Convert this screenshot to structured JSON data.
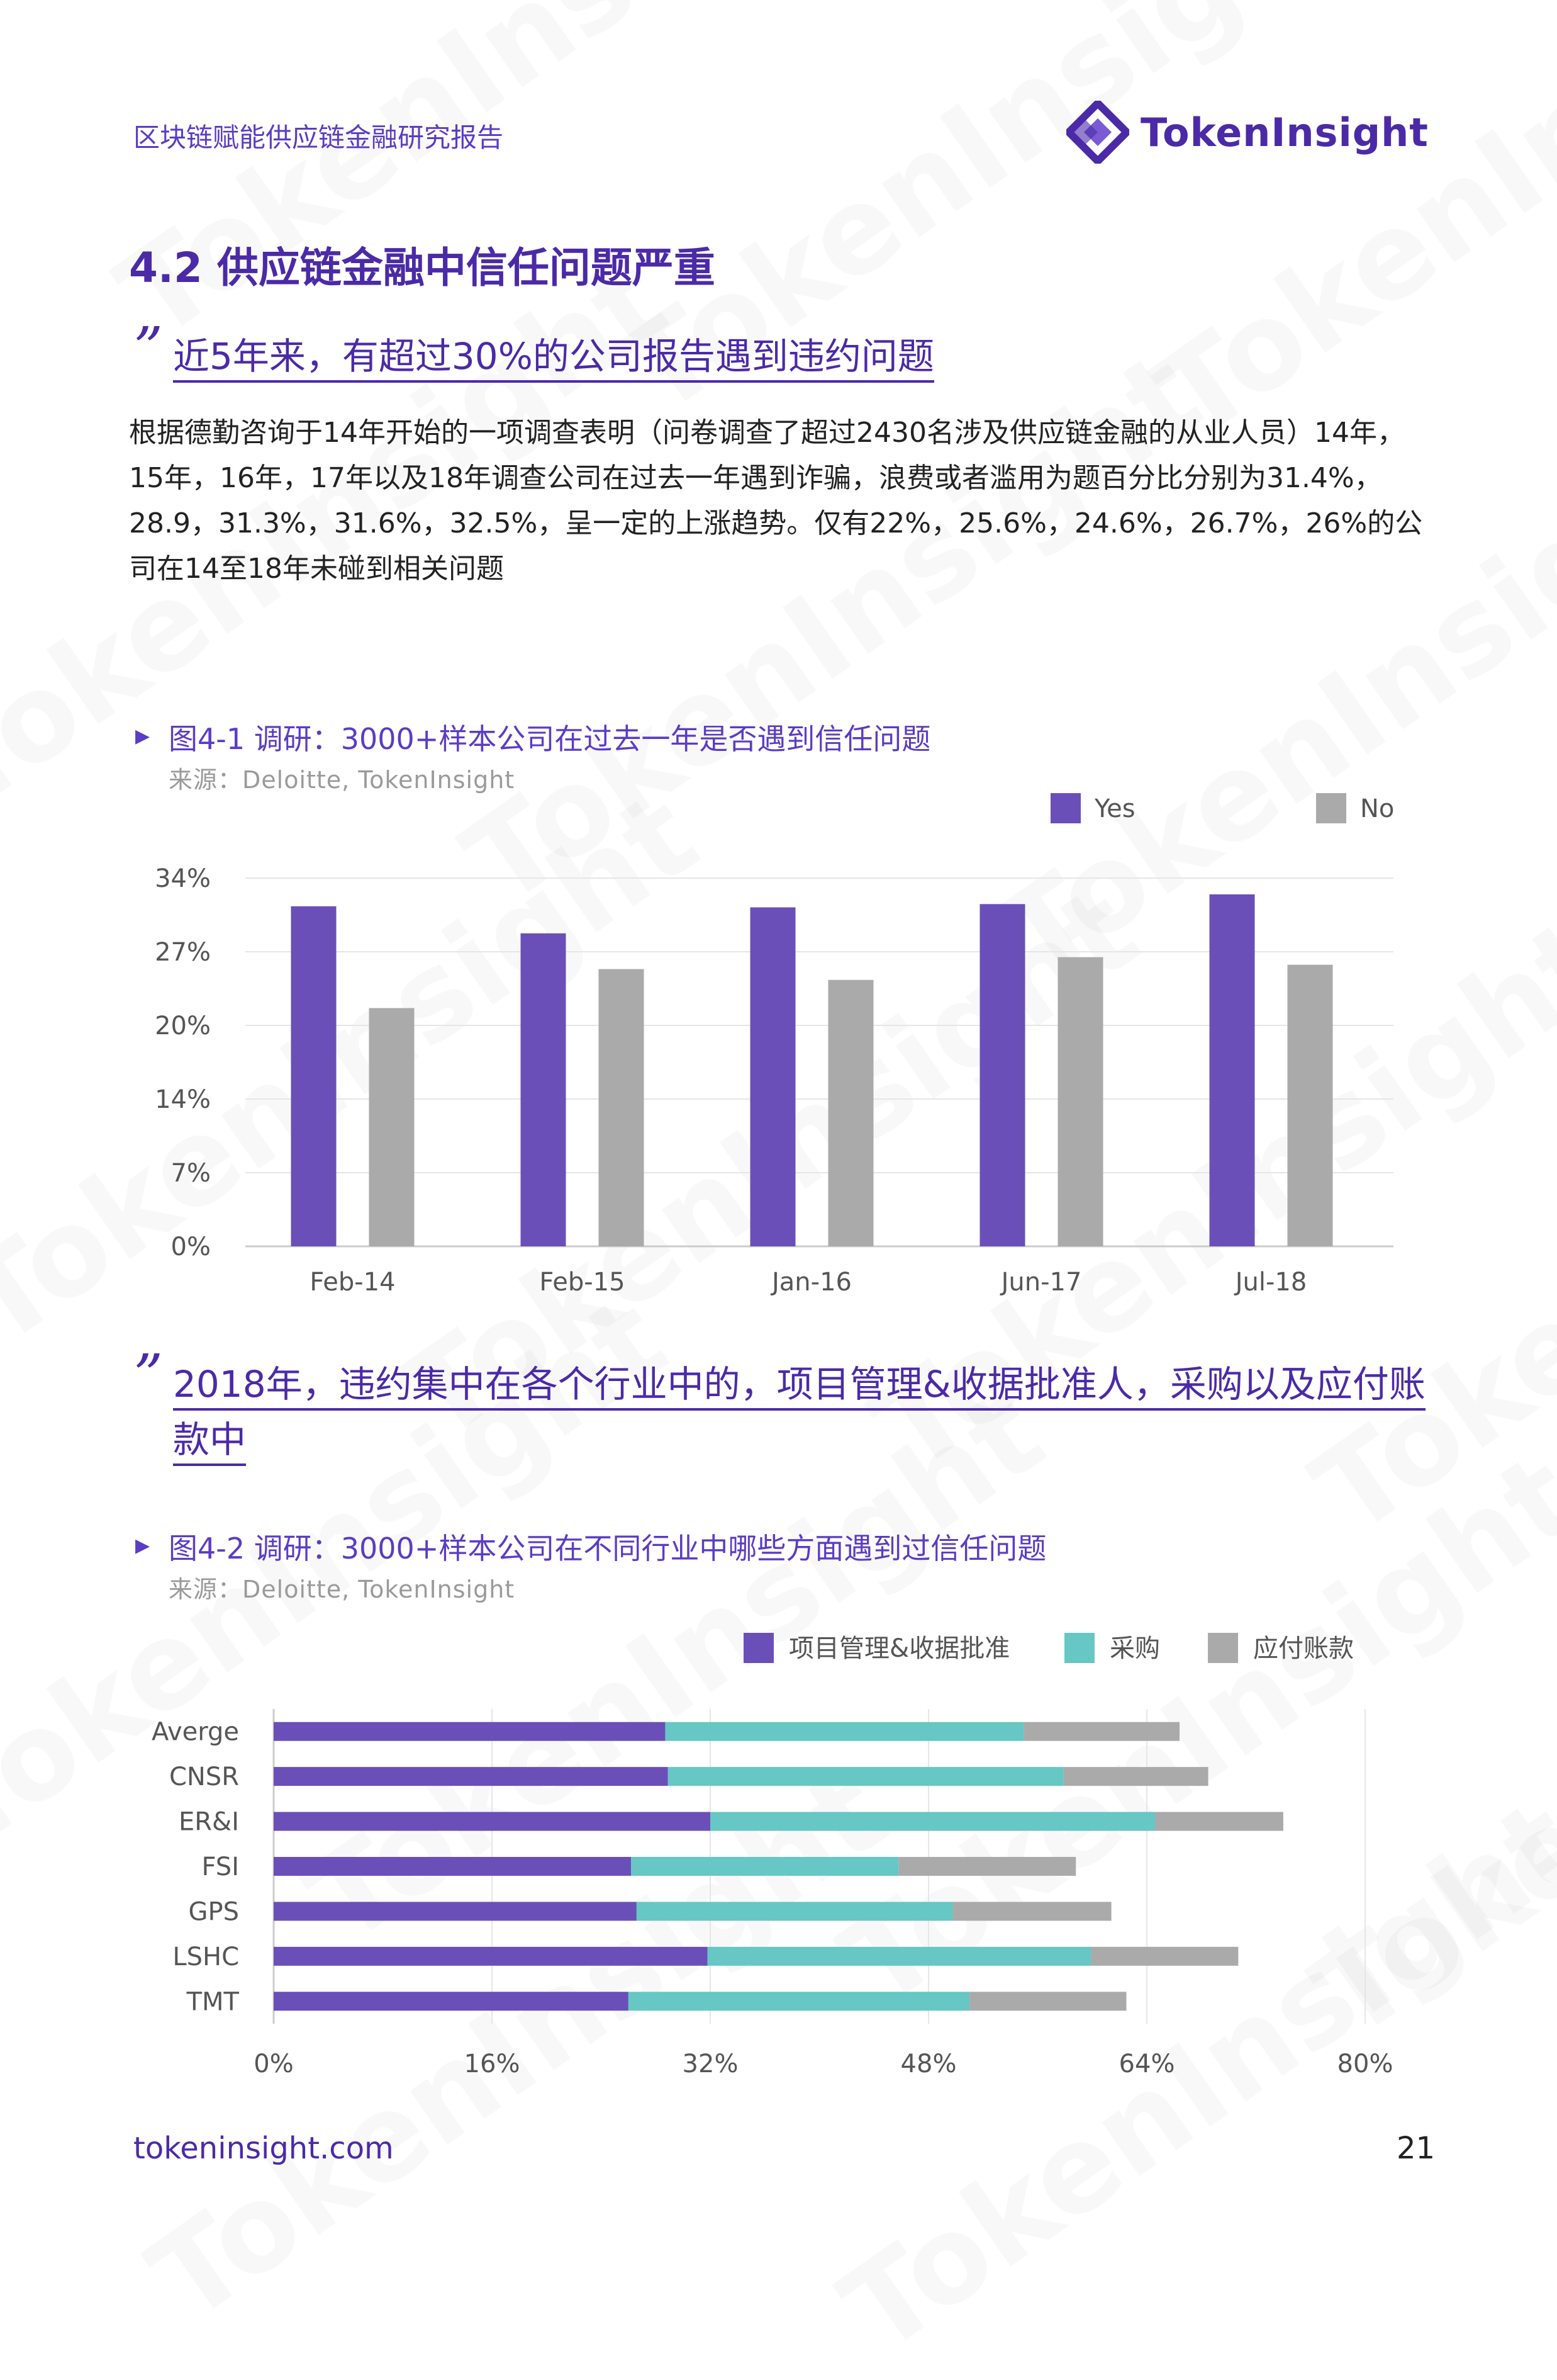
{
  "header": {
    "report_title": "区块链赋能供应链金融研究报告",
    "logo_text": "TokenInsight"
  },
  "watermark_text": "TokenInsight",
  "section": {
    "title": "4.2 供应链金融中信任问题严重"
  },
  "quote1": {
    "mark": "”",
    "text": "近5年来，有超过30%的公司报告遇到违约问题"
  },
  "paragraph": "根据德勤咨询于14年开始的一项调查表明（问卷调查了超过2430名涉及供应链金融的从业人员）14年，15年，16年，17年以及18年调查公司在过去一年遇到诈骗，浪费或者滥用为题百分比分别为31.4%，28.9，31.3%，31.6%，32.5%，呈一定的上涨趋势。仅有22%，25.6%，24.6%，26.7%，26%的公司在14至18年未碰到相关问题",
  "figure1": {
    "marker": "▶",
    "title": "图4-1 调研：3000+样本公司在过去一年是否遇到信任问题",
    "source": "来源：Deloitte, TokenInsight"
  },
  "quote2": {
    "mark": "”",
    "line1": "2018年，违约集中在各个行业中的，项目管理&收据批准人，采购以及应付账",
    "line2": "款中"
  },
  "figure2": {
    "marker": "▶",
    "title": "图4-2 调研：3000+样本公司在不同行业中哪些方面遇到过信任问题",
    "source": "来源：Deloitte, TokenInsight"
  },
  "chart_data": [
    {
      "type": "bar",
      "categories": [
        "Feb-14",
        "Feb-15",
        "Jan-16",
        "Jun-17",
        "Jul-18"
      ],
      "series": [
        {
          "name": "Yes",
          "values": [
            31.4,
            28.9,
            31.3,
            31.6,
            32.5
          ],
          "color": "#6a4fb8"
        },
        {
          "name": "No",
          "values": [
            22.0,
            25.6,
            24.6,
            26.7,
            26.0
          ],
          "color": "#aaaaaa"
        }
      ],
      "yticks": [
        "0%",
        "7%",
        "14%",
        "20%",
        "27%",
        "34%"
      ],
      "ylim": [
        0,
        34
      ],
      "legend_position": "top-right",
      "grid": true
    },
    {
      "type": "bar",
      "orientation": "horizontal",
      "stacked": true,
      "categories": [
        "Averge",
        "CNSR",
        "ER&I",
        "FSI",
        "GPS",
        "LSHC",
        "TMT"
      ],
      "series": [
        {
          "name": "项目管理&收据批准",
          "values": [
            28.7,
            28.9,
            32.0,
            26.2,
            26.6,
            31.8,
            26.0
          ],
          "color": "#6a4fb8"
        },
        {
          "name": "采购",
          "values": [
            26.3,
            29.0,
            32.6,
            19.6,
            23.2,
            28.1,
            25.0
          ],
          "color": "#66c7c4"
        },
        {
          "name": "应付账款",
          "values": [
            11.4,
            10.6,
            9.4,
            13.0,
            11.6,
            10.8,
            11.5
          ],
          "color": "#aaaaaa"
        }
      ],
      "xticks": [
        "0%",
        "16%",
        "32%",
        "48%",
        "64%",
        "80%"
      ],
      "xlim": [
        0,
        80
      ],
      "legend_position": "top-right",
      "grid": true
    }
  ],
  "footer": {
    "url": "tokeninsight.com",
    "page_number": "21"
  }
}
